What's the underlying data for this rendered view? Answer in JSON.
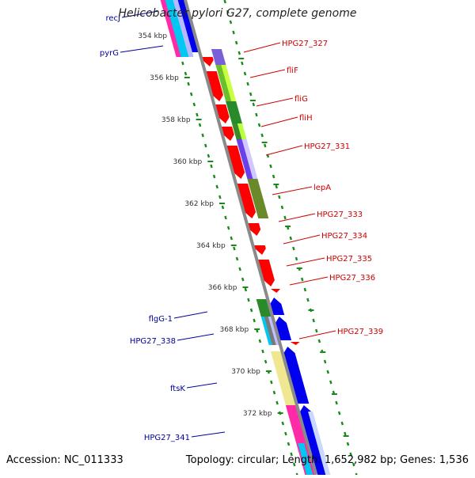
{
  "title": "Helicobacter pylori G27, complete genome",
  "accession": "Accession: NC_011333",
  "topology": "Topology: circular; Length: 1,652,982 bp; Genes: 1,536",
  "colors": {
    "backbone": "#8a8a8a",
    "tick": "#1a8a1a",
    "forward_label": "#cc0000",
    "reverse_label": "#000099"
  },
  "scale": {
    "unit": "kbp",
    "ticks": [
      {
        "kbp": 354,
        "label": "354 kbp"
      },
      {
        "kbp": 356,
        "label": "356 kbp"
      },
      {
        "kbp": 358,
        "label": "358 kbp"
      },
      {
        "kbp": 360,
        "label": "360 kbp"
      },
      {
        "kbp": 362,
        "label": "362 kbp"
      },
      {
        "kbp": 364,
        "label": "364 kbp"
      },
      {
        "kbp": 366,
        "label": "366 kbp"
      },
      {
        "kbp": 368,
        "label": "368 kbp"
      },
      {
        "kbp": 370,
        "label": "370 kbp"
      },
      {
        "kbp": 372,
        "label": "372 kbp"
      }
    ]
  },
  "labels": {
    "forward": [
      "HPG27_327",
      "fliF",
      "fliG",
      "fliH",
      "HPG27_331",
      "lepA",
      "HPG27_333",
      "HPG27_334",
      "HPG27_335",
      "HPG27_336",
      "HPG27_339"
    ],
    "reverse": [
      "recJ",
      "pyrG",
      "flgG-1",
      "HPG27_338",
      "ftsK",
      "HPG27_341"
    ]
  }
}
